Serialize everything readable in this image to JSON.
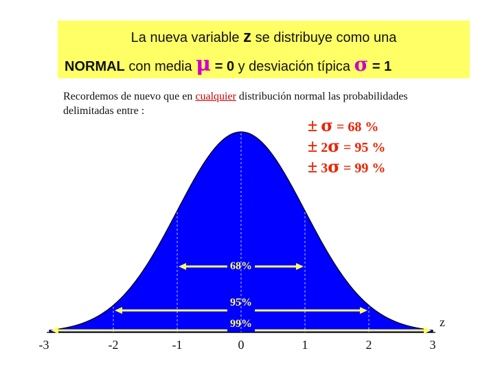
{
  "banner": {
    "line1_pre": "La nueva variable",
    "z": "z",
    "line1_post": "se distribuye como una",
    "normal": "NORMAL",
    "con_media": "con media",
    "mu": "μ",
    "mean_val": "= 0",
    "desv": "y desviación típica",
    "sigma": "σ",
    "sd_val": "= 1"
  },
  "intro": {
    "text1": "Recordemos de nuevo que en ",
    "link": "cualquier",
    "text2": " distribución normal las probabilidades delimitadas entre",
    "text3": " :"
  },
  "rules": [
    {
      "pm": "±",
      "mult": "",
      "sigma": "σ",
      "eq": "=",
      "pct": "68 %"
    },
    {
      "pm": "±",
      "mult": "2",
      "sigma": "σ",
      "eq": "=",
      "pct": "95 %"
    },
    {
      "pm": "±",
      "mult": "3",
      "sigma": "σ",
      "eq": "=",
      "pct": "99 %"
    }
  ],
  "chart_data": {
    "type": "area",
    "xlabel": "z",
    "xlim": [
      -3,
      3
    ],
    "x_ticks": [
      "-3",
      "-2",
      "-1",
      "0",
      "1",
      "2",
      "3"
    ],
    "mean": 0,
    "sd": 1,
    "fill_color": "#0000ff",
    "intervals": [
      {
        "label": "68%",
        "from": -1,
        "to": 1
      },
      {
        "label": "95%",
        "from": -2,
        "to": 2
      },
      {
        "label": "99%",
        "from": -3,
        "to": 3
      }
    ]
  }
}
